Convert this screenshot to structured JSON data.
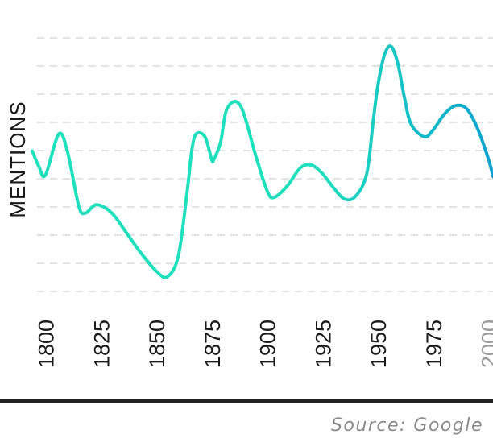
{
  "chart_data": {
    "type": "line",
    "title": "",
    "xlabel": "",
    "ylabel": "MENTIONS",
    "x_ticks": [
      "1800",
      "1825",
      "1850",
      "1875",
      "1900",
      "1925",
      "1950",
      "1975",
      "2000"
    ],
    "xlim": [
      1794,
      2002
    ],
    "grid": true,
    "legend": "none",
    "series": [
      {
        "x": [
          1794,
          1797,
          1800,
          1806,
          1810,
          1815,
          1818,
          1823,
          1830,
          1837,
          1843,
          1850,
          1855,
          1860,
          1864,
          1866,
          1868,
          1872,
          1875,
          1876,
          1879,
          1882,
          1888,
          1895,
          1900,
          1903,
          1909,
          1915,
          1920,
          1925,
          1930,
          1935,
          1940,
          1945,
          1948,
          1950,
          1953,
          1956,
          1959,
          1962,
          1965,
          1971,
          1975,
          1980,
          1985,
          1990,
          1995,
          2000,
          2002
        ],
        "y": [
          0.5,
          0.445,
          0.415,
          0.56,
          0.495,
          0.305,
          0.28,
          0.31,
          0.28,
          0.205,
          0.14,
          0.075,
          0.055,
          0.13,
          0.36,
          0.5,
          0.56,
          0.55,
          0.47,
          0.47,
          0.53,
          0.65,
          0.66,
          0.48,
          0.36,
          0.335,
          0.375,
          0.44,
          0.45,
          0.42,
          0.37,
          0.33,
          0.34,
          0.42,
          0.61,
          0.73,
          0.84,
          0.87,
          0.81,
          0.69,
          0.595,
          0.55,
          0.575,
          0.63,
          0.66,
          0.65,
          0.58,
          0.47,
          0.41
        ]
      }
    ],
    "colors": {
      "start": "#1fe0bd",
      "end": "#0fa2d0",
      "grid": "#e3e3e3",
      "axis_text": "#1a1a1a",
      "future_tick": "#9a9a9a",
      "baseline": "#222222"
    }
  },
  "source": "Source: Google"
}
